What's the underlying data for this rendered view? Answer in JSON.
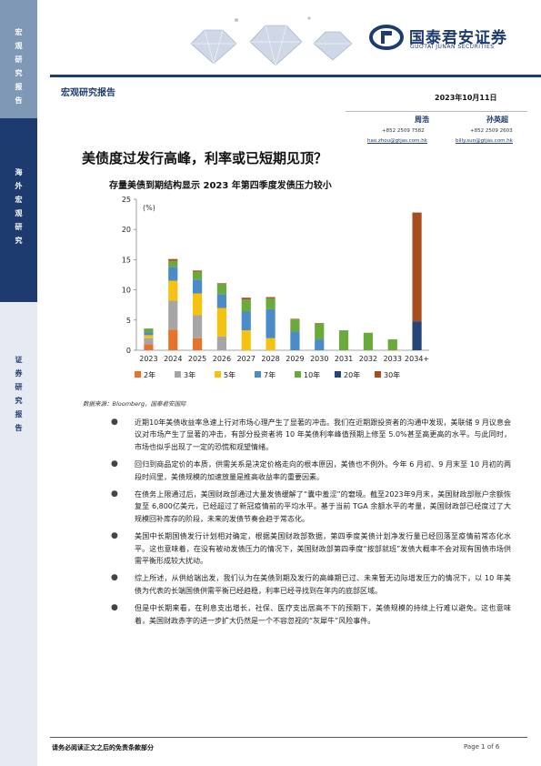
{
  "sidebar": {
    "top_label": "宏观研究报告",
    "mid_label": "海外宏观研究",
    "bottom_label": "证券研究报告"
  },
  "header": {
    "logo_cn": "国泰君安证券",
    "logo_en": "GUOTAI JUNAN SECURITIES",
    "report_type": "宏观研究报告",
    "date": "2023年10月11日"
  },
  "authors": [
    {
      "name": "周浩",
      "phone": "+852 2509 7582",
      "email": "hao.zhou@gtjas.com.hk"
    },
    {
      "name": "孙英超",
      "phone": "+852 2509 2603",
      "email": "billy.sun@gtjas.com.hk"
    }
  ],
  "title": "美债度过发行高峰，利率或已短期见顶？",
  "colors": {
    "navy": "#1d3b6e",
    "2y": "#e8722a",
    "3y": "#a6a6a6",
    "5y": "#f5c20f",
    "7y": "#4b8bc8",
    "10y": "#6aaa3a",
    "20y": "#23457a",
    "30y": "#a84d1e"
  },
  "chart_data": {
    "type": "bar",
    "stacked": true,
    "title": "存量美债到期结构显示 2023 年第四季度发债压力较小",
    "ylabel": "(%)",
    "ylim": [
      0,
      25
    ],
    "yticks": [
      0,
      5,
      10,
      15,
      20,
      25
    ],
    "grid": false,
    "legend": "bottom",
    "categories": [
      "2023",
      "2024",
      "2025",
      "2026",
      "2027",
      "2028",
      "2029",
      "2030",
      "2031",
      "2032",
      "2033",
      "2034+"
    ],
    "series": [
      {
        "name": "2年",
        "color": "#e8722a",
        "values": [
          1.0,
          3.4,
          2.0,
          0,
          0,
          0,
          0,
          0,
          0,
          0,
          0,
          0
        ]
      },
      {
        "name": "3年",
        "color": "#a6a6a6",
        "values": [
          1.0,
          4.8,
          3.8,
          2.3,
          0,
          0,
          0,
          0,
          0,
          0,
          0,
          0
        ]
      },
      {
        "name": "5年",
        "color": "#f5c20f",
        "values": [
          0.5,
          3.3,
          3.6,
          4.7,
          3.3,
          2.0,
          0,
          0,
          0,
          0,
          0,
          0
        ]
      },
      {
        "name": "7年",
        "color": "#4b8bc8",
        "values": [
          0.5,
          2.3,
          2.3,
          2.3,
          3.1,
          4.8,
          3.1,
          1.8,
          0,
          0,
          0,
          0
        ]
      },
      {
        "name": "10年",
        "color": "#6aaa3a",
        "values": [
          0.6,
          1.0,
          1.3,
          1.7,
          2.0,
          1.8,
          2.0,
          2.6,
          3.3,
          2.9,
          1.8,
          0
        ]
      },
      {
        "name": "20年",
        "color": "#23457a",
        "values": [
          0,
          0,
          0,
          0,
          0,
          0,
          0,
          0,
          0,
          0,
          0,
          4.8
        ]
      },
      {
        "name": "30年",
        "color": "#a84d1e",
        "values": [
          0,
          0.3,
          0.2,
          0.1,
          0.3,
          0.2,
          0.1,
          0.1,
          0,
          0,
          0,
          18.0
        ]
      }
    ]
  },
  "source": "数据来源：Bloomberg，国泰君安国际",
  "bullets": [
    "近期10年美债收益率急速上行对市场心理产生了显著的冲击。我们在近期跟投资者的沟通中发现，美联储 9 月议息会议对市场产生了显著的冲击，有部分投资者将 10 年美债利率峰值预期上修至 5.0%甚至高更高的水平。与此同时，市场也似乎出现了一定的恐慌和观望情绪。",
    "回归到商品定价的本质，供需关系是决定价格走向的根本原因，美债也不例外。今年 6 月初、9 月末至 10 月初的两段时间里，美债规模的加速放量是推高收益率的重要因素。",
    "在债务上限通过后，美国财政部通过大量发债缓解了“囊中羞涩”的窘境。截至2023年9月末，美国财政部账户余额恢复至 6,800亿美元，已经超过了新冠疫情前的平均水平。基于当前 TGA 余额水平的考量，美国财政部已经度过了大规模回补库存的阶段，未来的发债节奏会趋于常态化。",
    "美国中长期国债发行计划相对确定，根据美国财政部数据，第四季度美债计划净发行量已经回落至疫情前常态化水平。这也意味着，在没有被动发债压力的情况下，美国财政部第四季度“按部就班”发债大概率不会对现有国债市场供需平衡形成较大扰动。",
    "综上所述，从供给端出发，我们认为在美债到期及发行的高峰期已过、未来暂无边际增发压力的情况下，以 10 年美债为代表的长端国债供需平衡已经趋稳，利率已经寻找到在年内的底部区域。",
    "但是中长期来看，在利息支出增长，社保、医疗支出居高不下的预期下，美债规模的持续上行难以避免。这也意味着，美国财政赤字的进一步扩大仍然是一个不容忽视的“灰犀牛”风险事件。"
  ],
  "footer": {
    "disclaimer": "请务必阅读正文之后的免责条款部分",
    "page": "Page 1 of 6"
  }
}
